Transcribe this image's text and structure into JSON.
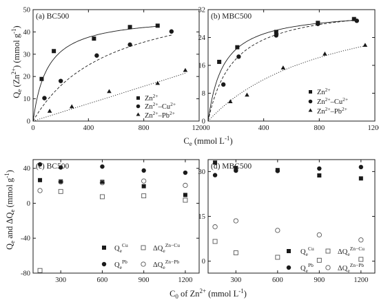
{
  "chart_data": [
    {
      "id": "a",
      "type": "scatter",
      "panel_label": "(a) BC500",
      "ylabel": "Q_e (Zn2+) (mmol g-1)",
      "xlabel": "C_e (mmol L-1)",
      "xlim": [
        0,
        1200
      ],
      "ylim": [
        0,
        50
      ],
      "xticks": [
        0,
        400,
        800,
        1200
      ],
      "yticks": [
        0,
        10,
        20,
        30,
        40,
        50
      ],
      "legend_position": "bottom-right",
      "series": [
        {
          "name": "Zn2+",
          "marker": "square",
          "line": "solid",
          "x": [
            62,
            150,
            440,
            700,
            900
          ],
          "y": [
            18.9,
            31.4,
            37.0,
            42.2,
            42.8
          ],
          "fit": {
            "model": "langmuir",
            "qmax": 47.5,
            "k": 0.0095
          }
        },
        {
          "name": "Zn2+–Cu2+",
          "marker": "circle",
          "line": "dashed",
          "x": [
            82,
            200,
            460,
            700,
            1000
          ],
          "y": [
            10.3,
            18.0,
            29.4,
            34.3,
            40.2
          ],
          "fit": {
            "model": "langmuir",
            "qmax": 60,
            "k": 0.0018
          }
        },
        {
          "name": "Zn2+–Pb2+",
          "marker": "triangle",
          "line": "dotted",
          "x": [
            120,
            280,
            550,
            900,
            1100
          ],
          "y": [
            4.5,
            6.5,
            13.3,
            17.0,
            22.8
          ],
          "fit": {
            "model": "linear",
            "slope": 0.0195
          }
        }
      ]
    },
    {
      "id": "b",
      "type": "scatter",
      "panel_label": "(b) MBC500",
      "xlim": [
        0,
        1200
      ],
      "ylim": [
        0,
        32
      ],
      "xticks": [
        0,
        400,
        800,
        1200
      ],
      "yticks": [
        0,
        8,
        16,
        24,
        32
      ],
      "legend_position": "bottom-right",
      "series": [
        {
          "name": "Zn2+",
          "marker": "square",
          "line": "solid",
          "x": [
            80,
            210,
            490,
            790,
            1050
          ],
          "y": [
            17.0,
            21.2,
            25.6,
            28.2,
            29.3
          ],
          "fit": {
            "model": "langmuir",
            "qmax": 32,
            "k": 0.009
          }
        },
        {
          "name": "Zn2+–Cu2+",
          "marker": "circle",
          "line": "dashed",
          "x": [
            110,
            220,
            490,
            790,
            1070
          ],
          "y": [
            10.5,
            18.5,
            24.6,
            27.9,
            28.8
          ],
          "fit": {
            "model": "langmuir",
            "qmax": 34,
            "k": 0.0055
          }
        },
        {
          "name": "Zn2+–Pb2+",
          "marker": "triangle",
          "line": "dotted",
          "x": [
            160,
            280,
            540,
            840,
            1130
          ],
          "y": [
            5.6,
            7.5,
            15.3,
            19.3,
            21.8
          ],
          "fit": {
            "model": "langmuir",
            "qmax": 39,
            "k": 0.0011
          }
        }
      ]
    },
    {
      "id": "c",
      "type": "scatter",
      "panel_label": "(c) BC500",
      "ylabel": "Q_e and ΔQ_e (mmol g-1)",
      "xlabel": "C_0 of Zn2+ (mmol L-1)",
      "xlim": [
        100,
        1300
      ],
      "ylim": [
        -80,
        50
      ],
      "xticks": [
        300,
        600,
        900,
        1200
      ],
      "yticks": [
        -80,
        -40,
        0,
        40
      ],
      "legend_position": "bottom-right",
      "series": [
        {
          "name": "Q_e^Cu",
          "marker": "square",
          "x": [
            150,
            300,
            600,
            900,
            1200
          ],
          "y": [
            26.5,
            25.0,
            24.5,
            19.5,
            9.5
          ]
        },
        {
          "name": "ΔQ_e^Zn−Cu",
          "marker": "open-square",
          "x": [
            150,
            300,
            600,
            900,
            1200
          ],
          "y": [
            -77,
            13.5,
            7.5,
            8.5,
            3.5
          ]
        },
        {
          "name": "Q_e^Pb",
          "marker": "circle",
          "x": [
            150,
            300,
            600,
            900,
            1200
          ],
          "y": [
            44.5,
            41.0,
            42.0,
            37.5,
            35.0
          ]
        },
        {
          "name": "ΔQ_e^Zn−Pb",
          "marker": "open-circle",
          "x": [
            150,
            300,
            600,
            900,
            1200
          ],
          "y": [
            14.5,
            24.5,
            23.5,
            25.5,
            20.5
          ]
        }
      ]
    },
    {
      "id": "d",
      "type": "scatter",
      "panel_label": "(d) MBC500",
      "xlim": [
        100,
        1300
      ],
      "ylim": [
        -4,
        34
      ],
      "xticks": [
        300,
        600,
        900,
        1200
      ],
      "yticks": [
        0,
        15,
        30
      ],
      "legend_position": "bottom-right",
      "series": [
        {
          "name": "Q_e^Cu",
          "marker": "square",
          "x": [
            150,
            300,
            600,
            900,
            1200
          ],
          "y": [
            33.0,
            31.2,
            30.5,
            28.7,
            27.7
          ]
        },
        {
          "name": "ΔQ_e^Zn−Cu",
          "marker": "open-square",
          "x": [
            150,
            300,
            600,
            900,
            1200
          ],
          "y": [
            6.6,
            2.8,
            1.3,
            0.3,
            0.6
          ]
        },
        {
          "name": "Q_e^Pb",
          "marker": "circle",
          "x": [
            150,
            300,
            600,
            900,
            1200
          ],
          "y": [
            28.8,
            30.3,
            30.2,
            31.0,
            31.5
          ]
        },
        {
          "name": "ΔQ_e^Zn−Pb",
          "marker": "open-circle",
          "x": [
            150,
            300,
            600,
            900,
            1200
          ],
          "y": [
            11.5,
            13.5,
            10.3,
            8.8,
            7.1
          ]
        }
      ]
    }
  ]
}
